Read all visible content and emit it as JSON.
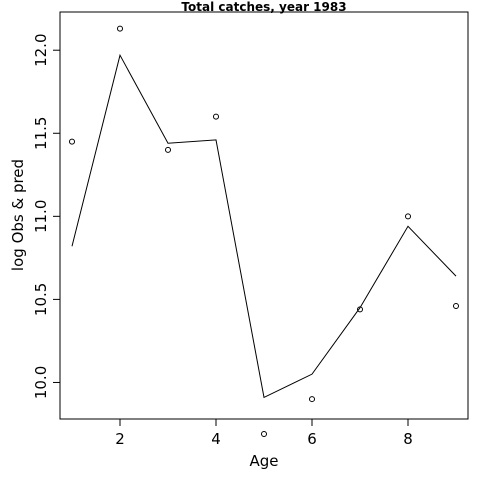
{
  "chart_data": {
    "type": "line",
    "title": "Total catches, year 1983",
    "xlabel": "Age",
    "ylabel": "log Obs & pred",
    "xlim": [
      0.75,
      9.25
    ],
    "ylim": [
      9.78,
      12.23
    ],
    "x_ticks": [
      2,
      4,
      6,
      8
    ],
    "y_ticks": [
      10.0,
      10.5,
      11.0,
      11.5,
      12.0
    ],
    "x_tick_labels": [
      "2",
      "4",
      "6",
      "8"
    ],
    "y_tick_labels": [
      "10.0",
      "10.5",
      "11.0",
      "11.5",
      "12.0"
    ],
    "grid": false,
    "series": [
      {
        "style": "line",
        "x": [
          1,
          2,
          3,
          4,
          5,
          6,
          7,
          8,
          9
        ],
        "values": [
          10.82,
          11.97,
          11.44,
          11.46,
          9.91,
          10.05,
          10.45,
          10.94,
          10.64
        ]
      },
      {
        "style": "points",
        "x": [
          1,
          2,
          3,
          4,
          5,
          6,
          7,
          8,
          9
        ],
        "values": [
          11.45,
          12.13,
          11.4,
          11.6,
          9.69,
          9.9,
          10.44,
          11.0,
          10.46
        ]
      }
    ]
  }
}
